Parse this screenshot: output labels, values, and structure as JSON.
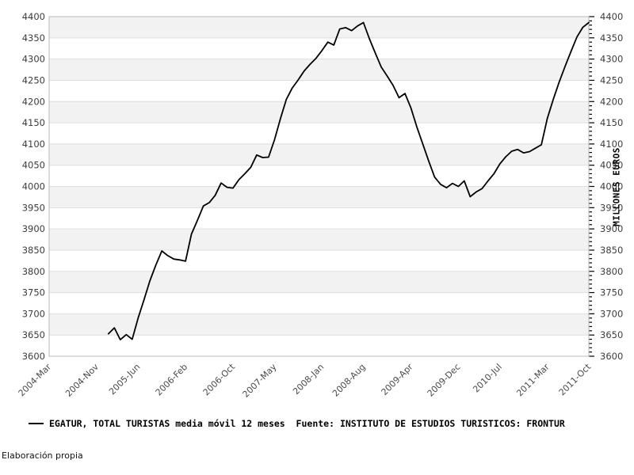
{
  "page": {
    "footer_note": "Elaboración propia"
  },
  "chart_data": {
    "type": "line",
    "title": "",
    "legend_label": "EGATUR, TOTAL TURISTAS media móvil 12 meses  Fuente: INSTITUTO DE ESTUDIOS TURISTICOS: FRONTUR",
    "y_axis": {
      "unit_label": "MILLONES EUROS",
      "min": 3600,
      "max": 4400,
      "major_step": 50,
      "minor_step": 10,
      "tick_labels": [
        "3600",
        "3650",
        "3700",
        "3750",
        "3800",
        "3850",
        "3900",
        "3950",
        "4000",
        "4050",
        "4100",
        "4150",
        "4200",
        "4250",
        "4300",
        "4350",
        "4400"
      ]
    },
    "x_axis": {
      "tick_labels": [
        "2004-Mar",
        "2004-Nov",
        "2005-Jun",
        "2006-Feb",
        "2006-Oct",
        "2007-May",
        "2008-Jan",
        "2008-Aug",
        "2009-Apr",
        "2009-Dec",
        "2010-Jul",
        "2011-Mar",
        "2011-Oct"
      ],
      "tick_months_from_2004_mar": [
        0,
        8,
        15,
        23,
        31,
        38,
        46,
        53,
        61,
        69,
        76,
        84,
        91
      ],
      "total_months": 91
    },
    "series": [
      {
        "name": "EGATUR, TOTAL TURISTAS media móvil 12 meses",
        "color": "#000000",
        "start_label": "2005-Jan",
        "start_month_from_2004_mar": 10,
        "monthly_values": [
          3653,
          3667,
          3639,
          3651,
          3640,
          3690,
          3733,
          3778,
          3815,
          3848,
          3837,
          3829,
          3827,
          3824,
          3888,
          3920,
          3954,
          3962,
          3979,
          4008,
          3998,
          3996,
          4016,
          4030,
          4045,
          4074,
          4068,
          4069,
          4110,
          4160,
          4205,
          4232,
          4251,
          4272,
          4288,
          4302,
          4320,
          4340,
          4333,
          4371,
          4374,
          4367,
          4378,
          4386,
          4348,
          4314,
          4281,
          4260,
          4238,
          4209,
          4219,
          4185,
          4140,
          4100,
          4060,
          4022,
          4005,
          3997,
          4007,
          4000,
          4013,
          3976,
          3987,
          3995,
          4013,
          4030,
          4053,
          4070,
          4083,
          4087,
          4079,
          4082,
          4090,
          4098,
          4160,
          4205,
          4246,
          4283,
          4318,
          4352,
          4375,
          4386
        ]
      }
    ],
    "style": {
      "band_colors": [
        "#f2f2f2",
        "#ffffff"
      ],
      "gridline_color": "#dedede",
      "border_color": "#b8b8b8",
      "axis_label_color": "#4a4a4a",
      "tick_color": "#000000",
      "line_color": "#000000",
      "background": "#ffffff"
    }
  }
}
